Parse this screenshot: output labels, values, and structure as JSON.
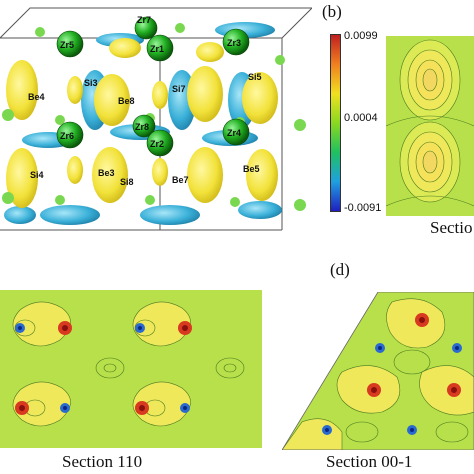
{
  "panel_labels": {
    "b": "(b)",
    "d": "(d)"
  },
  "colorbar": {
    "max_label": "0.0099",
    "mid_label": "0.0004",
    "min_label": "-0.0091",
    "colors": [
      "#1f1fbf",
      "#1fa0e0",
      "#20c060",
      "#8ad820",
      "#f0e020",
      "#f08020",
      "#c02020"
    ]
  },
  "captions": {
    "panel_b": "Sectio",
    "panel_c": "Section 110",
    "panel_d": "Section 00-1"
  },
  "atoms": {
    "zr": [
      "Zr5",
      "Zr7",
      "Zr1",
      "Zr3",
      "Zr6",
      "Zr8",
      "Zr2",
      "Zr4"
    ],
    "be": [
      "Be4",
      "Be8",
      "Be3",
      "Be7",
      "Be5"
    ],
    "si": [
      "Si3",
      "Si7",
      "Si5",
      "Si4",
      "Si8"
    ]
  },
  "colors": {
    "zr_atom": "#22b022",
    "isosurface_positive": "#f2e23a",
    "isosurface_negative": "#3ab0d8",
    "map_background": "#b8e04a",
    "contour_high": "#f6e25a",
    "peak_red": "#d83a20",
    "peak_blue": "#2a6ad0"
  }
}
